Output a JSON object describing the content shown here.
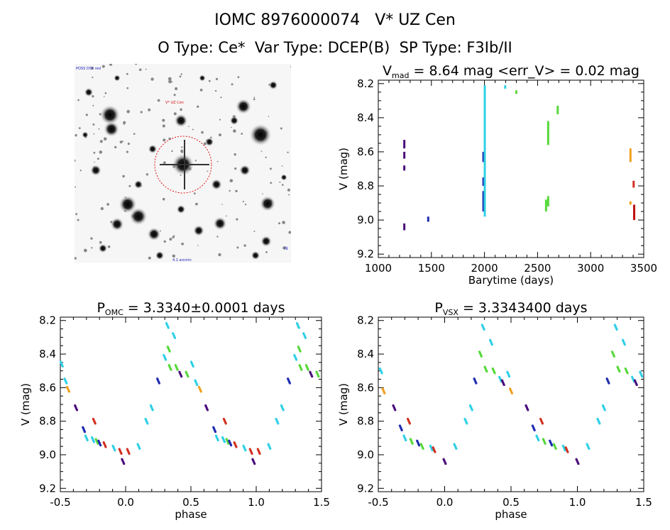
{
  "header": {
    "line1": "IOMC 8976000074   V* UZ Cen",
    "line2": "O Type: Ce*  Var Type: DCEP(B)  SP Type: F3Ib/II"
  },
  "image_panel": {
    "corner_label_top": "POSS DSS red",
    "target_label": "V* UZ Cen",
    "bottom_label": "4.1 arcmin",
    "right_label": "N"
  },
  "colors": {
    "purple": "#4b0c7a",
    "navy": "#1f2cb0",
    "cyan": "#2ed0e6",
    "green": "#56d83a",
    "orange": "#f0a020",
    "red": "#d23020",
    "darkred": "#c01010"
  },
  "chart_data": [
    {
      "type": "scatter",
      "title": "V_mad = 8.64 mag <err_V> = 0.02 mag",
      "title_parts": {
        "v": "V",
        "sub": "mad",
        "rest": " = 8.64 mag <err_V> = 0.02 mag"
      },
      "xlabel": "Barytime (days)",
      "ylabel": "V (mag)",
      "xlim": [
        1000,
        3500
      ],
      "ylim": [
        9.22,
        8.18
      ],
      "xticks": [
        "1000",
        "1500",
        "2000",
        "2500",
        "3000",
        "3500"
      ],
      "yticks": [
        "8.2",
        "8.4",
        "8.6",
        "8.8",
        "9.0",
        "9.2"
      ],
      "segments": [
        {
          "x": 1245,
          "y1": 8.53,
          "y2": 8.58,
          "color": "purple"
        },
        {
          "x": 1245,
          "y1": 8.6,
          "y2": 8.64,
          "color": "purple"
        },
        {
          "x": 1245,
          "y1": 8.68,
          "y2": 8.71,
          "color": "purple"
        },
        {
          "x": 1245,
          "y1": 9.02,
          "y2": 9.06,
          "color": "purple"
        },
        {
          "x": 1470,
          "y1": 8.98,
          "y2": 9.01,
          "color": "navy"
        },
        {
          "x": 1990,
          "y1": 8.6,
          "y2": 8.66,
          "color": "navy"
        },
        {
          "x": 1990,
          "y1": 8.75,
          "y2": 8.8,
          "color": "navy"
        },
        {
          "x": 1990,
          "y1": 8.83,
          "y2": 8.95,
          "color": "navy"
        },
        {
          "x": 2003,
          "y1": 8.21,
          "y2": 8.98,
          "color": "cyan"
        },
        {
          "x": 2195,
          "y1": 8.21,
          "y2": 8.23,
          "color": "cyan"
        },
        {
          "x": 2300,
          "y1": 8.24,
          "y2": 8.26,
          "color": "green"
        },
        {
          "x": 2580,
          "y1": 8.88,
          "y2": 8.95,
          "color": "green"
        },
        {
          "x": 2600,
          "y1": 8.42,
          "y2": 8.56,
          "color": "green"
        },
        {
          "x": 2600,
          "y1": 8.86,
          "y2": 8.92,
          "color": "green"
        },
        {
          "x": 2690,
          "y1": 8.33,
          "y2": 8.38,
          "color": "green"
        },
        {
          "x": 3375,
          "y1": 8.58,
          "y2": 8.66,
          "color": "orange"
        },
        {
          "x": 3375,
          "y1": 8.89,
          "y2": 8.91,
          "color": "orange"
        },
        {
          "x": 3405,
          "y1": 8.77,
          "y2": 8.81,
          "color": "red"
        },
        {
          "x": 3410,
          "y1": 8.91,
          "y2": 9.0,
          "color": "darkred"
        }
      ]
    },
    {
      "type": "scatter",
      "title": "P_OMC = 3.3340±0.0001 days",
      "title_parts": {
        "v": "P",
        "sub": "OMC",
        "rest": " = 3.3340±0.0001 days"
      },
      "xlabel": "phase",
      "ylabel": "V (mag)",
      "xlim": [
        -0.5,
        1.5
      ],
      "ylim": [
        9.22,
        8.18
      ],
      "xticks": [
        "-0.5",
        "0.0",
        "0.5",
        "1.0",
        "1.5"
      ],
      "yticks": [
        "8.2",
        "8.4",
        "8.6",
        "8.8",
        "9.0",
        "9.2"
      ],
      "clusters": [
        {
          "x": -0.49,
          "y": 8.46,
          "color": "cyan"
        },
        {
          "x": -0.46,
          "y": 8.56,
          "color": "cyan"
        },
        {
          "x": -0.44,
          "y": 8.61,
          "color": "orange"
        },
        {
          "x": -0.38,
          "y": 8.72,
          "color": "purple"
        },
        {
          "x": -0.32,
          "y": 8.85,
          "color": "navy"
        },
        {
          "x": -0.3,
          "y": 8.9,
          "color": "cyan"
        },
        {
          "x": -0.25,
          "y": 8.91,
          "color": "cyan"
        },
        {
          "x": -0.24,
          "y": 8.8,
          "color": "red"
        },
        {
          "x": -0.22,
          "y": 8.92,
          "color": "green"
        },
        {
          "x": -0.2,
          "y": 8.93,
          "color": "navy"
        },
        {
          "x": -0.16,
          "y": 8.94,
          "color": "red"
        },
        {
          "x": -0.09,
          "y": 8.96,
          "color": "cyan"
        },
        {
          "x": -0.04,
          "y": 8.98,
          "color": "red"
        },
        {
          "x": -0.02,
          "y": 9.04,
          "color": "purple"
        },
        {
          "x": 0.02,
          "y": 8.98,
          "color": "red"
        },
        {
          "x": 0.1,
          "y": 8.95,
          "color": "cyan"
        },
        {
          "x": 0.16,
          "y": 8.8,
          "color": "cyan"
        },
        {
          "x": 0.2,
          "y": 8.72,
          "color": "cyan"
        },
        {
          "x": 0.25,
          "y": 8.56,
          "color": "navy"
        },
        {
          "x": 0.3,
          "y": 8.42,
          "color": "cyan"
        },
        {
          "x": 0.32,
          "y": 8.23,
          "color": "cyan"
        },
        {
          "x": 0.33,
          "y": 8.37,
          "color": "green"
        },
        {
          "x": 0.34,
          "y": 8.48,
          "color": "green"
        },
        {
          "x": 0.37,
          "y": 8.29,
          "color": "cyan"
        },
        {
          "x": 0.39,
          "y": 8.48,
          "color": "green"
        },
        {
          "x": 0.42,
          "y": 8.52,
          "color": "purple"
        },
        {
          "x": 0.47,
          "y": 8.52,
          "color": "green"
        },
        {
          "x": 0.51,
          "y": 8.46,
          "color": "cyan"
        },
        {
          "x": 0.54,
          "y": 8.57,
          "color": "cyan"
        },
        {
          "x": 0.57,
          "y": 8.61,
          "color": "orange"
        },
        {
          "x": 0.62,
          "y": 8.72,
          "color": "purple"
        },
        {
          "x": 0.68,
          "y": 8.85,
          "color": "navy"
        },
        {
          "x": 0.7,
          "y": 8.9,
          "color": "cyan"
        },
        {
          "x": 0.75,
          "y": 8.91,
          "color": "cyan"
        },
        {
          "x": 0.76,
          "y": 8.8,
          "color": "red"
        },
        {
          "x": 0.78,
          "y": 8.92,
          "color": "green"
        },
        {
          "x": 0.8,
          "y": 8.93,
          "color": "navy"
        },
        {
          "x": 0.84,
          "y": 8.94,
          "color": "red"
        },
        {
          "x": 0.91,
          "y": 8.96,
          "color": "cyan"
        },
        {
          "x": 0.96,
          "y": 8.98,
          "color": "red"
        },
        {
          "x": 0.98,
          "y": 9.04,
          "color": "purple"
        },
        {
          "x": 1.02,
          "y": 8.98,
          "color": "red"
        },
        {
          "x": 1.1,
          "y": 8.95,
          "color": "cyan"
        },
        {
          "x": 1.16,
          "y": 8.8,
          "color": "cyan"
        },
        {
          "x": 1.2,
          "y": 8.72,
          "color": "cyan"
        },
        {
          "x": 1.25,
          "y": 8.56,
          "color": "navy"
        },
        {
          "x": 1.3,
          "y": 8.42,
          "color": "cyan"
        },
        {
          "x": 1.32,
          "y": 8.23,
          "color": "cyan"
        },
        {
          "x": 1.33,
          "y": 8.37,
          "color": "green"
        },
        {
          "x": 1.34,
          "y": 8.48,
          "color": "green"
        },
        {
          "x": 1.37,
          "y": 8.29,
          "color": "cyan"
        },
        {
          "x": 1.39,
          "y": 8.48,
          "color": "green"
        },
        {
          "x": 1.42,
          "y": 8.52,
          "color": "purple"
        },
        {
          "x": 1.47,
          "y": 8.52,
          "color": "green"
        }
      ]
    },
    {
      "type": "scatter",
      "title": "P_VSX = 3.3343400 days",
      "title_parts": {
        "v": "P",
        "sub": "VSX",
        "rest": " = 3.3343400 days"
      },
      "xlabel": "phase",
      "ylabel": "V (mag)",
      "xlim": [
        -0.5,
        1.5
      ],
      "ylim": [
        9.22,
        8.18
      ],
      "xticks": [
        "-0.5",
        "0.0",
        "0.5",
        "1.0",
        "1.5"
      ],
      "yticks": [
        "8.2",
        "8.4",
        "8.6",
        "8.8",
        "9.0",
        "9.2"
      ],
      "clusters": [
        {
          "x": -0.48,
          "y": 8.5,
          "color": "cyan"
        },
        {
          "x": -0.46,
          "y": 8.62,
          "color": "orange"
        },
        {
          "x": -0.38,
          "y": 8.72,
          "color": "purple"
        },
        {
          "x": -0.33,
          "y": 8.84,
          "color": "navy"
        },
        {
          "x": -0.3,
          "y": 8.9,
          "color": "cyan"
        },
        {
          "x": -0.27,
          "y": 8.8,
          "color": "red"
        },
        {
          "x": -0.25,
          "y": 8.92,
          "color": "green"
        },
        {
          "x": -0.2,
          "y": 8.93,
          "color": "navy"
        },
        {
          "x": -0.17,
          "y": 8.95,
          "color": "green"
        },
        {
          "x": -0.1,
          "y": 8.96,
          "color": "cyan"
        },
        {
          "x": -0.08,
          "y": 8.97,
          "color": "red"
        },
        {
          "x": 0.0,
          "y": 9.04,
          "color": "purple"
        },
        {
          "x": 0.08,
          "y": 8.95,
          "color": "cyan"
        },
        {
          "x": 0.16,
          "y": 8.8,
          "color": "cyan"
        },
        {
          "x": 0.2,
          "y": 8.72,
          "color": "cyan"
        },
        {
          "x": 0.23,
          "y": 8.56,
          "color": "navy"
        },
        {
          "x": 0.27,
          "y": 8.4,
          "color": "green"
        },
        {
          "x": 0.29,
          "y": 8.24,
          "color": "cyan"
        },
        {
          "x": 0.31,
          "y": 8.49,
          "color": "green"
        },
        {
          "x": 0.35,
          "y": 8.33,
          "color": "cyan"
        },
        {
          "x": 0.37,
          "y": 8.5,
          "color": "green"
        },
        {
          "x": 0.42,
          "y": 8.55,
          "color": "cyan"
        },
        {
          "x": 0.44,
          "y": 8.57,
          "color": "purple"
        },
        {
          "x": 0.48,
          "y": 8.52,
          "color": "cyan"
        },
        {
          "x": 0.5,
          "y": 8.62,
          "color": "orange"
        },
        {
          "x": 0.62,
          "y": 8.72,
          "color": "purple"
        },
        {
          "x": 0.67,
          "y": 8.84,
          "color": "navy"
        },
        {
          "x": 0.7,
          "y": 8.9,
          "color": "cyan"
        },
        {
          "x": 0.73,
          "y": 8.8,
          "color": "red"
        },
        {
          "x": 0.75,
          "y": 8.92,
          "color": "green"
        },
        {
          "x": 0.8,
          "y": 8.93,
          "color": "navy"
        },
        {
          "x": 0.83,
          "y": 8.95,
          "color": "green"
        },
        {
          "x": 0.9,
          "y": 8.96,
          "color": "cyan"
        },
        {
          "x": 0.92,
          "y": 8.97,
          "color": "red"
        },
        {
          "x": 1.0,
          "y": 9.04,
          "color": "purple"
        },
        {
          "x": 1.08,
          "y": 8.95,
          "color": "cyan"
        },
        {
          "x": 1.16,
          "y": 8.8,
          "color": "cyan"
        },
        {
          "x": 1.2,
          "y": 8.72,
          "color": "cyan"
        },
        {
          "x": 1.23,
          "y": 8.56,
          "color": "navy"
        },
        {
          "x": 1.27,
          "y": 8.4,
          "color": "green"
        },
        {
          "x": 1.29,
          "y": 8.24,
          "color": "cyan"
        },
        {
          "x": 1.31,
          "y": 8.49,
          "color": "green"
        },
        {
          "x": 1.35,
          "y": 8.33,
          "color": "cyan"
        },
        {
          "x": 1.37,
          "y": 8.5,
          "color": "green"
        },
        {
          "x": 1.42,
          "y": 8.55,
          "color": "cyan"
        },
        {
          "x": 1.44,
          "y": 8.57,
          "color": "purple"
        },
        {
          "x": 1.48,
          "y": 8.52,
          "color": "cyan"
        }
      ]
    }
  ]
}
